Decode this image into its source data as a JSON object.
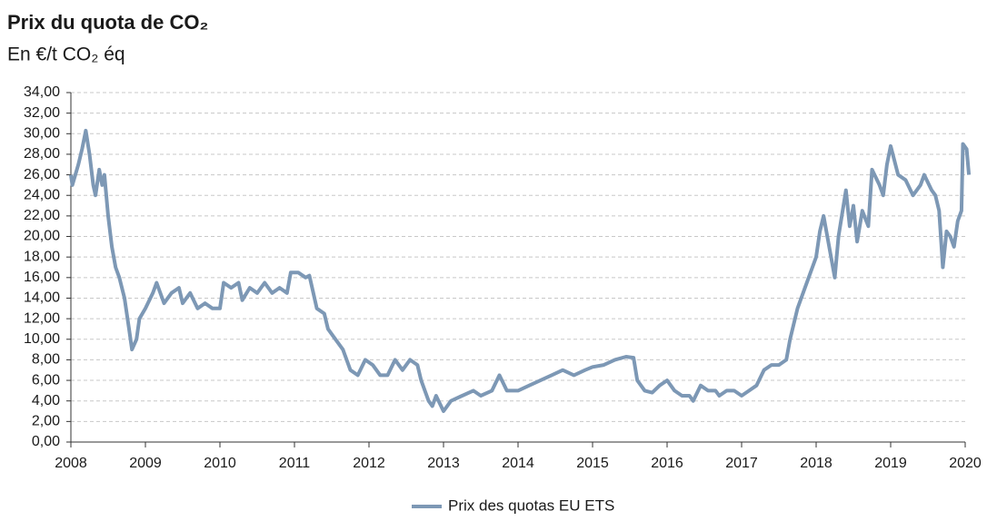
{
  "chart_data": {
    "type": "line",
    "title": "Prix du quota de CO₂",
    "subtitle": "En €/t CO₂ éq",
    "x": [
      2008.0,
      2008.02,
      2008.1,
      2008.15,
      2008.2,
      2008.25,
      2008.3,
      2008.33,
      2008.38,
      2008.42,
      2008.45,
      2008.5,
      2008.55,
      2008.6,
      2008.65,
      2008.72,
      2008.78,
      2008.82,
      2008.88,
      2008.92,
      2009.0,
      2009.1,
      2009.15,
      2009.25,
      2009.35,
      2009.45,
      2009.5,
      2009.6,
      2009.7,
      2009.8,
      2009.9,
      2010.0,
      2010.05,
      2010.15,
      2010.25,
      2010.3,
      2010.4,
      2010.5,
      2010.6,
      2010.7,
      2010.8,
      2010.9,
      2010.95,
      2011.05,
      2011.15,
      2011.2,
      2011.3,
      2011.4,
      2011.45,
      2011.55,
      2011.65,
      2011.75,
      2011.85,
      2011.95,
      2012.05,
      2012.15,
      2012.25,
      2012.35,
      2012.45,
      2012.55,
      2012.65,
      2012.7,
      2012.75,
      2012.8,
      2012.85,
      2012.9,
      2013.0,
      2013.1,
      2013.25,
      2013.4,
      2013.5,
      2013.65,
      2013.75,
      2013.85,
      2014.0,
      2014.15,
      2014.3,
      2014.45,
      2014.6,
      2014.75,
      2014.9,
      2015.0,
      2015.15,
      2015.3,
      2015.45,
      2015.55,
      2015.6,
      2015.7,
      2015.8,
      2015.9,
      2016.0,
      2016.1,
      2016.2,
      2016.3,
      2016.35,
      2016.45,
      2016.55,
      2016.65,
      2016.7,
      2016.8,
      2016.9,
      2017.0,
      2017.1,
      2017.2,
      2017.3,
      2017.4,
      2017.5,
      2017.6,
      2017.65,
      2017.75,
      2017.85,
      2017.95,
      2018.0,
      2018.05,
      2018.1,
      2018.15,
      2018.2,
      2018.25,
      2018.3,
      2018.4,
      2018.45,
      2018.5,
      2018.55,
      2018.62,
      2018.7,
      2018.75,
      2018.85,
      2018.9,
      2018.95,
      2019.0,
      2019.1,
      2019.2,
      2019.3,
      2019.4,
      2019.45,
      2019.55,
      2019.6,
      2019.65,
      2019.7,
      2019.75,
      2019.8,
      2019.85,
      2019.9,
      2019.95,
      2019.97,
      2020.02,
      2020.05
    ],
    "series": [
      {
        "name": "Prix des quotas EU ETS",
        "color": "#7d98b5",
        "values": [
          26,
          25,
          27,
          28.5,
          30.3,
          28,
          25,
          24,
          26.5,
          25,
          26,
          22,
          19,
          17,
          16,
          14,
          11,
          9,
          10,
          12,
          13,
          14.5,
          15.5,
          13.5,
          14.5,
          15,
          13.5,
          14.5,
          13,
          13.5,
          13,
          13,
          15.5,
          15,
          15.5,
          13.8,
          15,
          14.5,
          15.5,
          14.5,
          15,
          14.5,
          16.5,
          16.5,
          16,
          16.2,
          13,
          12.5,
          11,
          10,
          9,
          7,
          6.5,
          8,
          7.5,
          6.5,
          6.5,
          8,
          7,
          8,
          7.5,
          6,
          5,
          4,
          3.5,
          4.5,
          3,
          4,
          4.5,
          5,
          4.5,
          5,
          6.5,
          5,
          5,
          5.5,
          6,
          6.5,
          7,
          6.5,
          7,
          7.3,
          7.5,
          8,
          8.3,
          8.2,
          6,
          5,
          4.8,
          5.5,
          6,
          5,
          4.5,
          4.5,
          4,
          5.5,
          5,
          5,
          4.5,
          5,
          5,
          4.5,
          5,
          5.5,
          7,
          7.5,
          7.5,
          8,
          10,
          13,
          15,
          17,
          18,
          20.5,
          22,
          20,
          18,
          16,
          20,
          24.5,
          21,
          23,
          19.5,
          22.5,
          21,
          26.5,
          25,
          24,
          27,
          28.8,
          26,
          25.5,
          24,
          25,
          26,
          24.5,
          24,
          22.5,
          17,
          20.5,
          20,
          19,
          21.5,
          22.5,
          29,
          28.5,
          26
        ]
      }
    ],
    "xlim": [
      2008,
      2020
    ],
    "xticks": [
      2008,
      2009,
      2010,
      2011,
      2012,
      2013,
      2014,
      2015,
      2016,
      2017,
      2018,
      2019,
      2020
    ],
    "ylim": [
      0,
      34
    ],
    "yticks": [
      {
        "value": 0,
        "label": "0,00"
      },
      {
        "value": 2,
        "label": "2,00"
      },
      {
        "value": 4,
        "label": "4,00"
      },
      {
        "value": 6,
        "label": "6,00"
      },
      {
        "value": 8,
        "label": "8,00"
      },
      {
        "value": 10,
        "label": "10,00"
      },
      {
        "value": 12,
        "label": "12,00"
      },
      {
        "value": 14,
        "label": "14,00"
      },
      {
        "value": 16,
        "label": "16,00"
      },
      {
        "value": 18,
        "label": "18,00"
      },
      {
        "value": 20,
        "label": "20,00"
      },
      {
        "value": 22,
        "label": "22,00"
      },
      {
        "value": 24,
        "label": "24,00"
      },
      {
        "value": 26,
        "label": "26,00"
      },
      {
        "value": 28,
        "label": "28,00"
      },
      {
        "value": 30,
        "label": "30,00"
      },
      {
        "value": 32,
        "label": "32,00"
      },
      {
        "value": 34,
        "label": "34,00"
      }
    ],
    "grid": true
  }
}
